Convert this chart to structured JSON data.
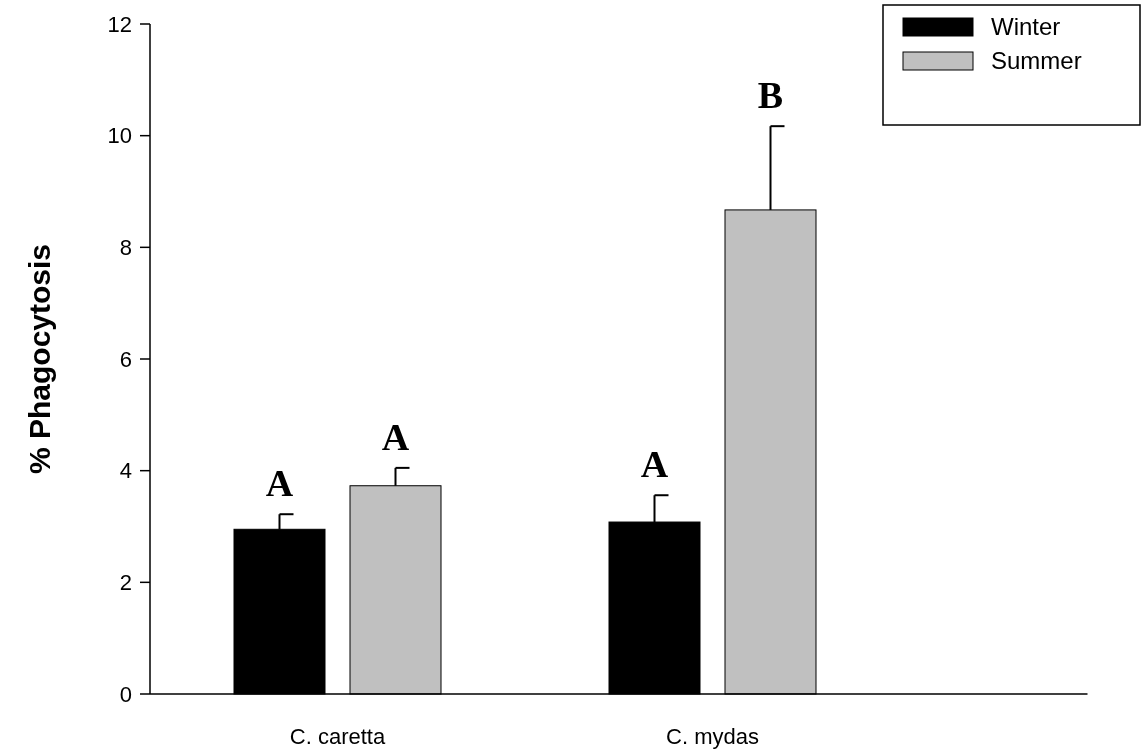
{
  "chart_data": {
    "type": "bar",
    "ylabel": "% Phagocytosis",
    "categories": [
      "C. caretta",
      "C. mydas"
    ],
    "series": [
      {
        "name": "Winter",
        "color": "#000000",
        "values": [
          2.95,
          3.08
        ],
        "errors": [
          [
            2.95,
            3.22
          ],
          [
            3.08,
            3.56
          ]
        ]
      },
      {
        "name": "Summer",
        "color": "#c0c0c0",
        "values": [
          3.73,
          8.67
        ],
        "errors": [
          [
            3.73,
            4.05
          ],
          [
            8.67,
            10.17
          ]
        ]
      }
    ],
    "annotations": [
      "A",
      "A",
      "A",
      "B"
    ],
    "ylim": [
      0,
      12
    ],
    "yticks": [
      0,
      2,
      4,
      6,
      8,
      10,
      12
    ],
    "legend": "top right",
    "grid": false
  }
}
